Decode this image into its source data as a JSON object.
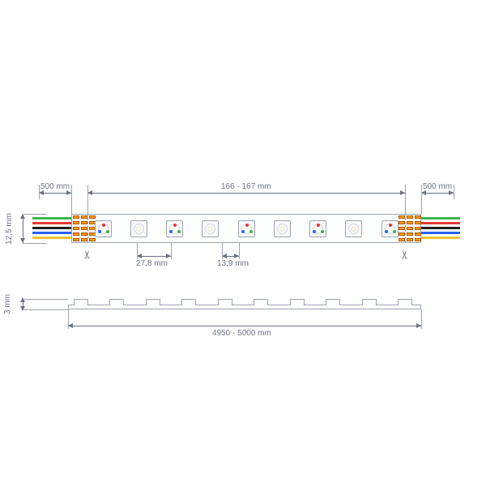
{
  "diagram_type": "technical-dimensional-drawing",
  "subject": "LED strip / flexible PCB",
  "units": "mm",
  "colors": {
    "stroke": "#6b7280",
    "light_stroke": "#9ca3af",
    "strip_fill": "#fdfefe",
    "pad": "#f59e0b",
    "pad_border": "#b45309",
    "label": "#6b7280",
    "background": "#ffffff"
  },
  "wire_colors": [
    "#3fb34f",
    "#e53935",
    "#1e1e1e",
    "#2962ff",
    "#f4c430"
  ],
  "fontsize_pt": 10,
  "top_view": {
    "strip_height_label": "12,5 mm",
    "lead_left_label": "500 mm",
    "lead_right_label": "500 mm",
    "segment_length_label": "166 - 167 mm",
    "led_pitch_label": "27,8 mm",
    "led_half_pitch_label": "13,9 mm",
    "led_count_visible": 9,
    "led_pattern": [
      "rgb",
      "white",
      "rgb",
      "white",
      "rgb",
      "white",
      "rgb",
      "white",
      "rgb"
    ],
    "pads_per_side": 5
  },
  "side_view": {
    "thickness_label": "3 mm",
    "total_length_label": "4950 - 5000 mm",
    "bump_count": 10
  }
}
